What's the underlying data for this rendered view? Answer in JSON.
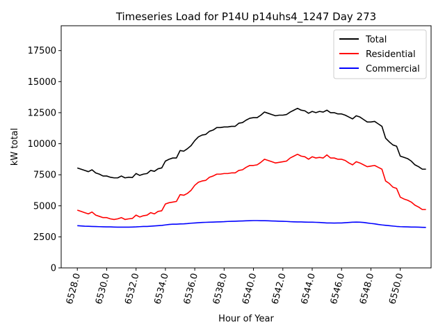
{
  "chart_data": {
    "type": "line",
    "title": "Timeseries Load for P14U p14uhs4_1247  Day 273",
    "xlabel": "Hour of Year",
    "ylabel": "kW total",
    "xlim": [
      6526.9,
      6552.1
    ],
    "ylim": [
      0,
      19500
    ],
    "x_ticks": [
      6528,
      6530,
      6532,
      6534,
      6536,
      6538,
      6540,
      6542,
      6544,
      6546,
      6548,
      6550
    ],
    "x_tick_labels": [
      "6528.0",
      "6530.0",
      "6532.0",
      "6534.0",
      "6536.0",
      "6538.0",
      "6540.0",
      "6542.0",
      "6544.0",
      "6546.0",
      "6548.0",
      "6550.0"
    ],
    "y_ticks": [
      0,
      2500,
      5000,
      7500,
      10000,
      12500,
      15000,
      17500
    ],
    "y_tick_labels": [
      "0",
      "2500",
      "5000",
      "7500",
      "10000",
      "12500",
      "15000",
      "17500"
    ],
    "legend_position": "top-right",
    "x_start": 6528,
    "x_step": 0.25,
    "series": [
      {
        "name": "Total",
        "color": "#000000",
        "values": [
          8050,
          7950,
          7850,
          7750,
          7900,
          7650,
          7550,
          7400,
          7400,
          7300,
          7250,
          7250,
          7400,
          7250,
          7300,
          7280,
          7600,
          7450,
          7550,
          7600,
          7850,
          7780,
          7980,
          8050,
          8600,
          8750,
          8850,
          8850,
          9450,
          9400,
          9600,
          9850,
          10250,
          10550,
          10700,
          10750,
          11000,
          11100,
          11300,
          11300,
          11350,
          11350,
          11400,
          11400,
          11650,
          11700,
          11900,
          12050,
          12100,
          12100,
          12300,
          12550,
          12450,
          12350,
          12250,
          12300,
          12300,
          12350,
          12550,
          12700,
          12850,
          12700,
          12650,
          12450,
          12600,
          12500,
          12600,
          12550,
          12700,
          12500,
          12500,
          12400,
          12400,
          12300,
          12150,
          12000,
          12250,
          12150,
          11950,
          11750,
          11750,
          11800,
          11600,
          11400,
          10450,
          10150,
          9900,
          9800,
          9000,
          8900,
          8800,
          8600,
          8300,
          8150,
          7950,
          7950
        ]
      },
      {
        "name": "Residential",
        "color": "#ff0000",
        "values": [
          4650,
          4550,
          4450,
          4350,
          4500,
          4250,
          4150,
          4050,
          4050,
          3950,
          3900,
          3950,
          4050,
          3900,
          3950,
          3980,
          4250,
          4100,
          4200,
          4250,
          4450,
          4350,
          4550,
          4600,
          5150,
          5250,
          5300,
          5350,
          5900,
          5850,
          6000,
          6250,
          6650,
          6900,
          7000,
          7050,
          7300,
          7400,
          7550,
          7550,
          7600,
          7600,
          7650,
          7650,
          7850,
          7900,
          8100,
          8250,
          8250,
          8300,
          8500,
          8750,
          8650,
          8550,
          8450,
          8500,
          8550,
          8600,
          8850,
          9000,
          9150,
          9000,
          8950,
          8750,
          8950,
          8850,
          8900,
          8850,
          9100,
          8850,
          8850,
          8750,
          8750,
          8650,
          8450,
          8300,
          8550,
          8450,
          8300,
          8150,
          8200,
          8250,
          8100,
          7950,
          7000,
          6800,
          6500,
          6400,
          5700,
          5550,
          5450,
          5300,
          5050,
          4900,
          4700,
          4700
        ]
      },
      {
        "name": "Commercial",
        "color": "#0000ff",
        "values": [
          3400,
          3380,
          3360,
          3350,
          3340,
          3330,
          3320,
          3310,
          3300,
          3300,
          3290,
          3280,
          3280,
          3280,
          3280,
          3290,
          3300,
          3320,
          3340,
          3340,
          3360,
          3380,
          3400,
          3420,
          3460,
          3500,
          3520,
          3520,
          3540,
          3550,
          3570,
          3600,
          3620,
          3640,
          3660,
          3670,
          3680,
          3690,
          3700,
          3710,
          3720,
          3740,
          3750,
          3760,
          3770,
          3780,
          3790,
          3800,
          3810,
          3810,
          3800,
          3800,
          3790,
          3780,
          3770,
          3760,
          3750,
          3740,
          3720,
          3710,
          3700,
          3700,
          3690,
          3680,
          3680,
          3670,
          3660,
          3640,
          3620,
          3620,
          3610,
          3620,
          3620,
          3640,
          3660,
          3680,
          3690,
          3680,
          3660,
          3620,
          3580,
          3550,
          3500,
          3460,
          3430,
          3400,
          3370,
          3340,
          3320,
          3310,
          3300,
          3290,
          3290,
          3280,
          3270,
          3260
        ]
      }
    ]
  }
}
